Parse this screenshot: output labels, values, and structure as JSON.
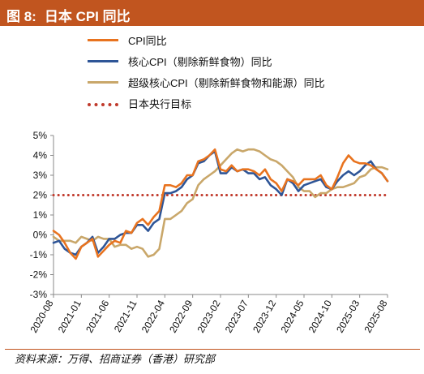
{
  "header": {
    "figure_label": "图 8:",
    "title": "日本 CPI 同比"
  },
  "source": "资料来源：万得、招商证券（香港）研究部",
  "chart_data": {
    "type": "line",
    "title": "日本 CPI 同比",
    "xlabel": "",
    "ylabel": "",
    "ylim": [
      -3,
      5
    ],
    "yticks": [
      -3,
      -2,
      -1,
      0,
      1,
      2,
      3,
      4,
      5
    ],
    "ytick_labels": [
      "-3%",
      "-2%",
      "-1%",
      "0%",
      "1%",
      "2%",
      "3%",
      "4%",
      "5%"
    ],
    "xtick_labels": [
      "2020-08",
      "2021-01",
      "2021-06",
      "2021-11",
      "2022-04",
      "2022-09",
      "2023-02",
      "2023-07",
      "2023-12",
      "2024-05",
      "2024-10",
      "2025-03",
      "2025-08"
    ],
    "grid": false,
    "legend_position": "top-left",
    "x": [
      "2020-08",
      "2020-09",
      "2020-10",
      "2020-11",
      "2020-12",
      "2021-01",
      "2021-02",
      "2021-03",
      "2021-04",
      "2021-05",
      "2021-06",
      "2021-07",
      "2021-08",
      "2021-09",
      "2021-10",
      "2021-11",
      "2021-12",
      "2022-01",
      "2022-02",
      "2022-03",
      "2022-04",
      "2022-05",
      "2022-06",
      "2022-07",
      "2022-08",
      "2022-09",
      "2022-10",
      "2022-11",
      "2022-12",
      "2023-01",
      "2023-02",
      "2023-03",
      "2023-04",
      "2023-05",
      "2023-06",
      "2023-07",
      "2023-08",
      "2023-09",
      "2023-10",
      "2023-11",
      "2023-12",
      "2024-01",
      "2024-02",
      "2024-03",
      "2024-04",
      "2024-05",
      "2024-06",
      "2024-07",
      "2024-08",
      "2024-09",
      "2024-10",
      "2024-11",
      "2024-12",
      "2025-01",
      "2025-02",
      "2025-03",
      "2025-04",
      "2025-05",
      "2025-06",
      "2025-07",
      "2025-08"
    ],
    "series": [
      {
        "name": "CPI同比",
        "color": "#e8731f",
        "values": [
          0.2,
          0.0,
          -0.4,
          -0.9,
          -1.2,
          -0.6,
          -0.4,
          -0.2,
          -1.1,
          -0.8,
          -0.5,
          -0.3,
          -0.4,
          0.2,
          0.1,
          0.6,
          0.8,
          0.5,
          0.9,
          1.2,
          2.5,
          2.5,
          2.4,
          2.6,
          3.0,
          3.0,
          3.7,
          3.8,
          4.0,
          4.3,
          3.3,
          3.2,
          3.5,
          3.2,
          3.3,
          3.3,
          3.2,
          3.0,
          3.3,
          2.8,
          2.6,
          2.2,
          2.8,
          2.7,
          2.5,
          2.8,
          2.8,
          2.8,
          3.0,
          2.5,
          2.3,
          2.9,
          3.6,
          4.0,
          3.7,
          3.6,
          3.6,
          3.5,
          3.3,
          3.1,
          2.7
        ]
      },
      {
        "name": "核心CPI（剔除新鲜食物）同比",
        "color": "#2e5597",
        "values": [
          -0.4,
          -0.3,
          -0.7,
          -0.9,
          -1.0,
          -0.6,
          -0.4,
          -0.1,
          -0.9,
          -0.6,
          -0.2,
          -0.2,
          0.0,
          0.1,
          0.1,
          0.5,
          0.5,
          0.2,
          0.6,
          0.8,
          2.1,
          2.1,
          2.2,
          2.4,
          2.8,
          3.0,
          3.6,
          3.7,
          4.0,
          4.2,
          3.1,
          3.1,
          3.4,
          3.2,
          3.3,
          3.1,
          3.1,
          2.8,
          2.9,
          2.5,
          2.3,
          2.0,
          2.8,
          2.6,
          2.2,
          2.5,
          2.6,
          2.7,
          2.8,
          2.4,
          2.3,
          2.7,
          3.0,
          3.2,
          3.0,
          3.2,
          3.5,
          3.7,
          3.3,
          3.1,
          2.7
        ]
      },
      {
        "name": "超级核心CPI（剔除新鲜食物和能源）同比",
        "color": "#c9a76a",
        "values": [
          -0.1,
          -0.3,
          -0.3,
          -0.3,
          -0.4,
          -0.1,
          -0.2,
          -0.3,
          -0.1,
          -0.2,
          -0.2,
          -0.6,
          -0.5,
          -0.5,
          -0.7,
          -0.6,
          -0.7,
          -1.1,
          -1.0,
          -0.7,
          0.8,
          0.8,
          1.0,
          1.2,
          1.6,
          1.8,
          2.5,
          2.8,
          3.0,
          3.2,
          3.5,
          3.8,
          4.1,
          4.3,
          4.2,
          4.3,
          4.3,
          4.2,
          4.0,
          3.8,
          3.7,
          3.5,
          3.2,
          2.9,
          2.4,
          2.2,
          2.2,
          1.9,
          2.1,
          2.1,
          2.3,
          2.4,
          2.4,
          2.5,
          2.6,
          2.9,
          3.0,
          3.3,
          3.4,
          3.4,
          3.3
        ]
      },
      {
        "name": "日本央行目标",
        "color": "#c0392b",
        "style": "dotted",
        "values": [
          2,
          2,
          2,
          2,
          2,
          2,
          2,
          2,
          2,
          2,
          2,
          2,
          2,
          2,
          2,
          2,
          2,
          2,
          2,
          2,
          2,
          2,
          2,
          2,
          2,
          2,
          2,
          2,
          2,
          2,
          2,
          2,
          2,
          2,
          2,
          2,
          2,
          2,
          2,
          2,
          2,
          2,
          2,
          2,
          2,
          2,
          2,
          2,
          2,
          2,
          2,
          2,
          2,
          2,
          2,
          2,
          2,
          2,
          2,
          2,
          2
        ]
      }
    ]
  }
}
